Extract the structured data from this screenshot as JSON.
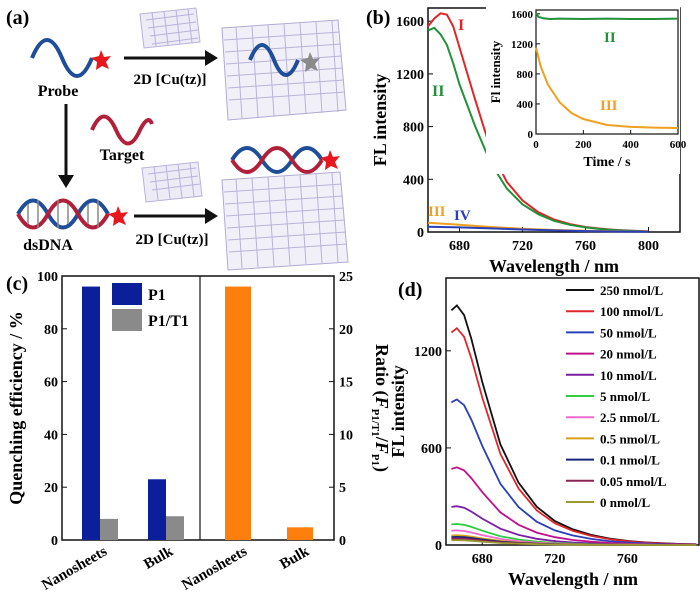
{
  "panel_a": {
    "label": "(a)",
    "probe": "Probe",
    "target": "Target",
    "dsdna": "dsDNA",
    "mof_top": "2D [Cu(tz)]",
    "mof_bottom": "2D [Cu(tz)]",
    "colors": {
      "probe_strand": "#1f4e99",
      "target_strand": "#b0203a",
      "fluorophore": "#e8171d",
      "quencher": "#8a8a8a",
      "sheet": "#b8b3d8"
    }
  },
  "panel_b": {
    "label": "(b)",
    "series_labels": [
      "I",
      "II",
      "III",
      "IV"
    ],
    "inset_labels": [
      "II",
      "III"
    ]
  },
  "panel_c": {
    "label": "(c)",
    "legend": [
      "P1",
      "P1/T1"
    ]
  },
  "panel_d": {
    "label": "(d)"
  },
  "chart_data": [
    {
      "panel": "b",
      "type": "line",
      "xlabel": "Wavelength / nm",
      "ylabel": "FL intensity",
      "xlim": [
        660,
        820
      ],
      "ylim": [
        0,
        1700
      ],
      "xticks": [
        680,
        720,
        760,
        800
      ],
      "yticks": [
        0,
        400,
        800,
        1200,
        1600
      ],
      "series": [
        {
          "name": "I",
          "color": "#e0262a",
          "x": [
            660,
            664,
            668,
            672,
            676,
            680,
            690,
            700,
            710,
            720,
            730,
            740,
            750,
            760,
            770,
            780,
            790,
            800
          ],
          "y": [
            1560,
            1620,
            1660,
            1650,
            1560,
            1400,
            1000,
            620,
            380,
            240,
            150,
            95,
            60,
            38,
            24,
            15,
            9,
            5
          ]
        },
        {
          "name": "II",
          "color": "#23913a",
          "x": [
            660,
            664,
            668,
            672,
            676,
            680,
            690,
            700,
            710,
            720,
            730,
            740,
            750,
            760,
            770,
            780,
            790,
            800
          ],
          "y": [
            1530,
            1550,
            1500,
            1420,
            1280,
            1120,
            800,
            520,
            330,
            210,
            135,
            85,
            55,
            35,
            22,
            14,
            8,
            4
          ]
        },
        {
          "name": "III",
          "color": "#f0a020",
          "x": [
            660,
            680,
            700,
            720,
            740,
            760,
            780,
            800
          ],
          "y": [
            70,
            55,
            38,
            25,
            15,
            9,
            5,
            3
          ]
        },
        {
          "name": "IV",
          "color": "#2a3fb8",
          "x": [
            660,
            680,
            700,
            720,
            740,
            760,
            780,
            800
          ],
          "y": [
            40,
            35,
            27,
            19,
            12,
            7,
            4,
            2
          ]
        }
      ]
    },
    {
      "panel": "b-inset",
      "type": "line",
      "xlabel": "Time / s",
      "ylabel": "Fl intensity",
      "xlim": [
        0,
        600
      ],
      "ylim": [
        0,
        1650
      ],
      "xticks": [
        0,
        200,
        400,
        600
      ],
      "yticks": [
        0,
        400,
        800,
        1200,
        1600
      ],
      "series": [
        {
          "name": "II",
          "color": "#23913a",
          "x": [
            0,
            10,
            30,
            60,
            100,
            200,
            300,
            400,
            500,
            600
          ],
          "y": [
            1610,
            1560,
            1540,
            1530,
            1535,
            1530,
            1535,
            1530,
            1530,
            1535
          ]
        },
        {
          "name": "III",
          "color": "#f0a020",
          "x": [
            0,
            20,
            50,
            100,
            150,
            200,
            300,
            400,
            500,
            600
          ],
          "y": [
            1150,
            900,
            660,
            420,
            280,
            200,
            120,
            95,
            85,
            80
          ]
        }
      ]
    },
    {
      "panel": "c-left",
      "type": "bar",
      "ylabel": "Quenching efficiency / %",
      "ylim": [
        0,
        100
      ],
      "yticks": [
        0,
        20,
        40,
        60,
        80,
        100
      ],
      "categories": [
        "Nanosheets",
        "Bulk"
      ],
      "series": [
        {
          "name": "P1",
          "color": "#0c1f9a",
          "values": [
            96,
            23
          ]
        },
        {
          "name": "P1/T1",
          "color": "#8a8a8a",
          "values": [
            8,
            9
          ]
        }
      ]
    },
    {
      "panel": "c-right",
      "type": "bar",
      "ylabel": "Ratio (F_P1/T1 / F_P1)",
      "ylim": [
        0,
        25
      ],
      "yticks": [
        0,
        5,
        10,
        15,
        20,
        25
      ],
      "categories": [
        "Nanosheets",
        "Bulk"
      ],
      "series": [
        {
          "color": "#ff7f0e",
          "values": [
            24,
            1.2
          ]
        }
      ]
    },
    {
      "panel": "d",
      "type": "line",
      "xlabel": "Wavelength / nm",
      "ylabel": "FL intensity",
      "xlim": [
        660,
        800
      ],
      "ylim": [
        0,
        1650
      ],
      "xticks": [
        680,
        720,
        760
      ],
      "yticks": [
        0,
        600,
        1200
      ],
      "series": [
        {
          "name": "250 nmol/L",
          "color": "#111111",
          "peak": 1480
        },
        {
          "name": "100 nmol/L",
          "color": "#e0262a",
          "peak": 1340
        },
        {
          "name": "50 nmol/L",
          "color": "#2a3fb8",
          "peak": 900
        },
        {
          "name": "20 nmol/L",
          "color": "#c0108a",
          "peak": 480
        },
        {
          "name": "10 nmol/L",
          "color": "#7b1fa2",
          "peak": 240
        },
        {
          "name": "5 nmol/L",
          "color": "#2ecc40",
          "peak": 130
        },
        {
          "name": "2.5 nmol/L",
          "color": "#f06ad0",
          "peak": 90
        },
        {
          "name": "0.5 nmol/L",
          "color": "#d4a017",
          "peak": 60
        },
        {
          "name": "0.1 nmol/L",
          "color": "#1a237e",
          "peak": 50
        },
        {
          "name": "0.05 nmol/L",
          "color": "#8b2252",
          "peak": 40
        },
        {
          "name": "0 nmol/L",
          "color": "#9a9a30",
          "peak": 30
        }
      ]
    }
  ]
}
